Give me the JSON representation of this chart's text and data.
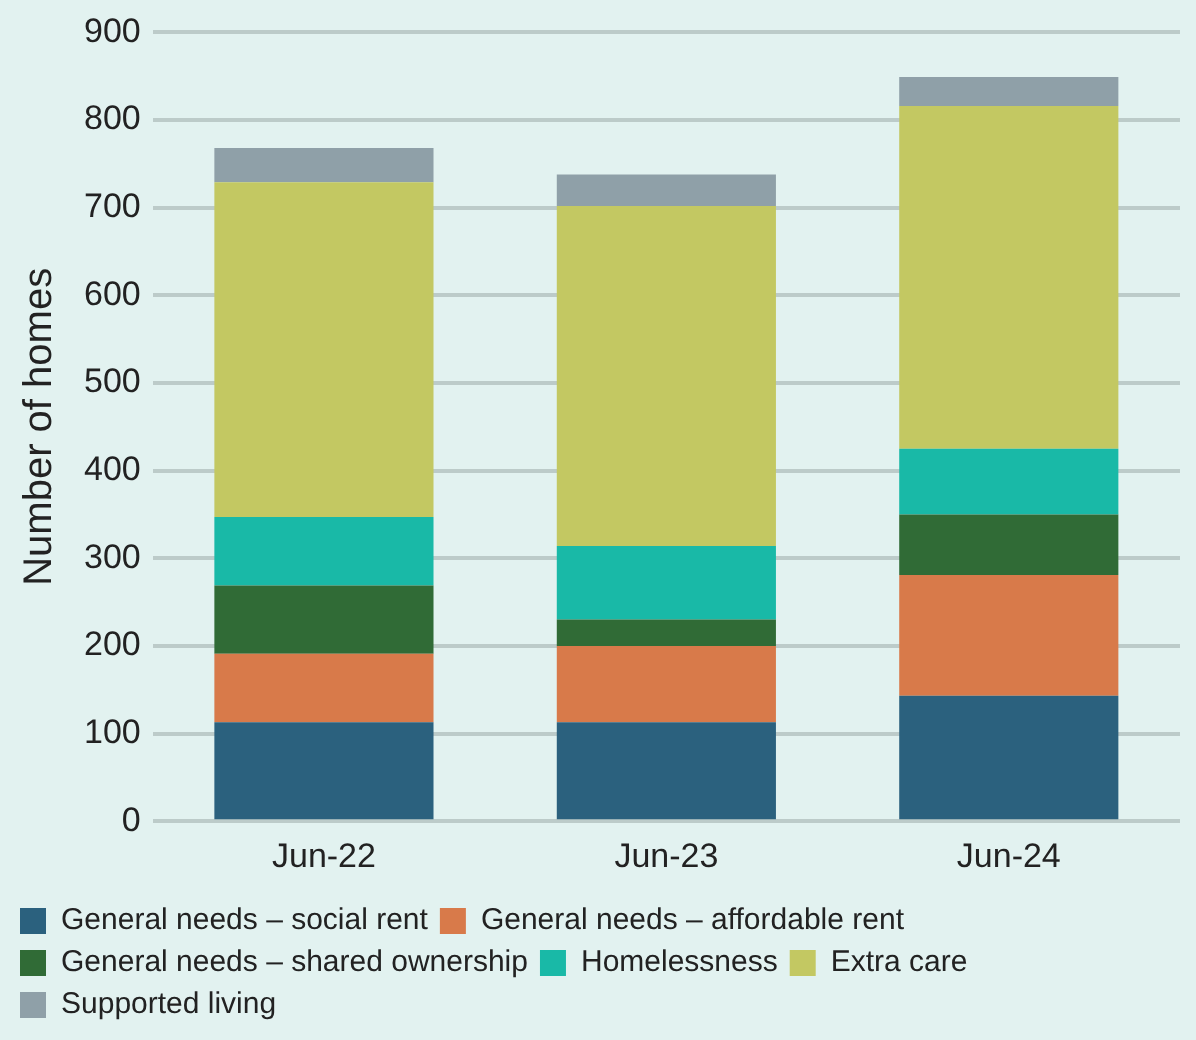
{
  "chart_data": {
    "type": "bar",
    "stacked": true,
    "ylabel": "Number of homes",
    "categories": [
      "Jun-22",
      "Jun-23",
      "Jun-24"
    ],
    "series": [
      {
        "name": "General needs – social rent",
        "color": "#2b617e",
        "values": [
          113,
          113,
          143
        ]
      },
      {
        "name": "General needs – affordable rent",
        "color": "#d87a4a",
        "values": [
          78,
          87,
          138
        ]
      },
      {
        "name": "General needs – shared ownership",
        "color": "#306b36",
        "values": [
          78,
          30,
          69
        ]
      },
      {
        "name": "Homelessness",
        "color": "#19b9a7",
        "values": [
          78,
          84,
          75
        ]
      },
      {
        "name": "Extra care",
        "color": "#c3c862",
        "values": [
          382,
          388,
          391
        ]
      },
      {
        "name": "Supported living",
        "color": "#8fa0a8",
        "values": [
          39,
          36,
          33
        ]
      }
    ],
    "ylim": [
      0,
      900
    ],
    "yticks": [
      0,
      100,
      200,
      300,
      400,
      500,
      600,
      700,
      800,
      900
    ],
    "grid": "y",
    "legend": "bottom"
  }
}
